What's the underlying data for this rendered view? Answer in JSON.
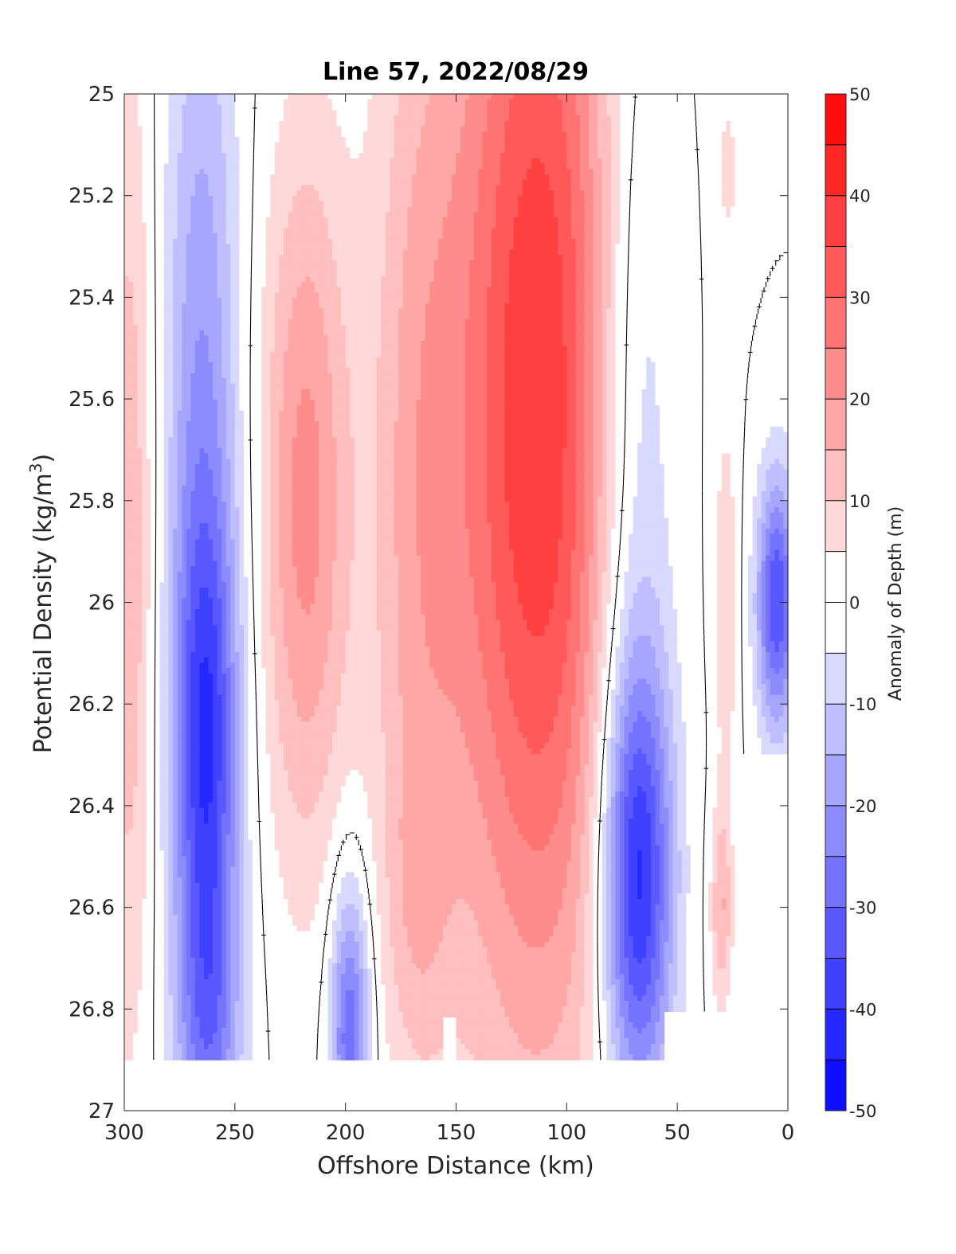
{
  "chart_data": {
    "type": "heatmap",
    "subtype": "filled-contour",
    "title": "Line 57, 2022/08/29",
    "xlabel": "Offshore Distance (km)",
    "ylabel_main": "Potential Density (kg/m",
    "ylabel_sup": "3",
    "ylabel_close": ")",
    "colorbar_label": "Anomaly of Depth (m)",
    "xlim": [
      300,
      0
    ],
    "ylim": [
      25,
      27
    ],
    "x_reversed": true,
    "y_reversed": true,
    "xticks": [
      300,
      250,
      200,
      150,
      100,
      50,
      0
    ],
    "yticks": [
      25,
      25.2,
      25.4,
      25.6,
      25.8,
      26,
      26.2,
      26.4,
      26.6,
      26.8,
      27
    ],
    "ytick_labels": [
      "25",
      "25.2",
      "25.4",
      "25.6",
      "25.8",
      "26",
      "26.2",
      "26.4",
      "26.6",
      "26.8",
      "27"
    ],
    "colorbar_ticks": [
      50,
      40,
      30,
      20,
      10,
      0,
      -10,
      -20,
      -30,
      -40,
      -50
    ],
    "colorbar_range": [
      -50,
      50
    ],
    "contour_step": 5,
    "zero_contour_line": true,
    "data_extent_sigma_max": 26.9,
    "colormap": {
      "negative_end": "#0000ff",
      "zero": "#ffffff",
      "positive_end": "#ff0000"
    },
    "x_grid": [
      0,
      10,
      20,
      30,
      40,
      50,
      60,
      70,
      80,
      90,
      100,
      110,
      120,
      130,
      140,
      150,
      160,
      170,
      180,
      190,
      200,
      210,
      220,
      230,
      240,
      250,
      260,
      270,
      280,
      290,
      300
    ],
    "y_grid": [
      25,
      25.1,
      25.2,
      25.3,
      25.4,
      25.5,
      25.6,
      25.7,
      25.8,
      25.9,
      26,
      26.1,
      26.2,
      26.3,
      26.4,
      26.5,
      26.6,
      26.7,
      26.8,
      26.9
    ],
    "features": [
      {
        "x": 113,
        "x_half_width": 40,
        "sigma_center": 25.6,
        "sigma_spread": 1.3,
        "amplitude": 40
      },
      {
        "x": 68,
        "x_half_width": 16,
        "sigma_center": 26.55,
        "sigma_spread": 0.45,
        "amplitude": -42
      },
      {
        "x": 70,
        "x_half_width": 20,
        "sigma_center": 25.6,
        "sigma_spread": 0.9,
        "amplitude": -15
      },
      {
        "x": 263,
        "x_half_width": 15,
        "sigma_center": 26.3,
        "sigma_spread": 0.5,
        "amplitude": -35
      },
      {
        "x": 265,
        "x_half_width": 17,
        "sigma_center": 25.5,
        "sigma_spread": 0.8,
        "amplitude": -18
      },
      {
        "x": 262,
        "x_half_width": 15,
        "sigma_center": 26.85,
        "sigma_spread": 0.3,
        "amplitude": -20
      },
      {
        "x": 198,
        "x_half_width": 9,
        "sigma_center": 26.85,
        "sigma_spread": 0.3,
        "amplitude": -30
      },
      {
        "x": 218,
        "x_half_width": 20,
        "sigma_center": 25.8,
        "sigma_spread": 0.7,
        "amplitude": 22
      },
      {
        "x": 168,
        "x_half_width": 22,
        "sigma_center": 25.8,
        "sigma_spread": 1.1,
        "amplitude": 14
      },
      {
        "x": 168,
        "x_half_width": 14,
        "sigma_center": 26.6,
        "sigma_spread": 0.3,
        "amplitude": 6
      },
      {
        "x": 298,
        "x_half_width": 12,
        "sigma_center": 25.9,
        "sigma_spread": 1.0,
        "amplitude": 14
      },
      {
        "x": 5,
        "x_half_width": 9,
        "sigma_center": 26.0,
        "sigma_spread": 0.25,
        "amplitude": -35
      },
      {
        "x": 28,
        "x_half_width": 5,
        "sigma_center": 26.0,
        "sigma_spread": 0.35,
        "amplitude": 10
      },
      {
        "x": 30,
        "x_half_width": 5,
        "sigma_center": 26.6,
        "sigma_spread": 0.2,
        "amplitude": 15
      },
      {
        "x": 27,
        "x_half_width": 5,
        "sigma_center": 25.15,
        "sigma_spread": 0.15,
        "amplitude": 7
      }
    ],
    "missing_regions": [
      {
        "x_max": 22,
        "sigma_min": 26.3
      },
      {
        "x_max": 55,
        "sigma_min": 26.8
      },
      {
        "x_min": 155,
        "x_max": 150,
        "sigma_min": 26.82
      }
    ]
  }
}
